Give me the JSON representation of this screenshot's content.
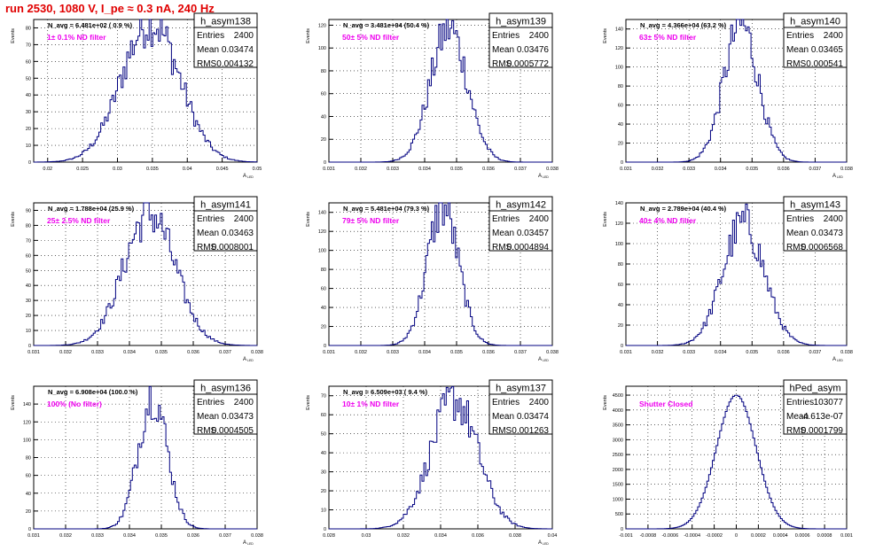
{
  "page_title": "run 2530,  1080 V, I_pe ≈ 0.3 nA, 240 Hz",
  "colors": {
    "histogram": "#000080",
    "annotation": "#ee00ee",
    "title": "#e00000",
    "grid": "#000000"
  },
  "chart_data": [
    {
      "type": "histogram",
      "name": "h_asym138",
      "navg": "N_avg = 6.481e+02 ( 0.9 %)",
      "annotation": "1± 0.1% ND filter",
      "stats": {
        "entries_label": "Entries",
        "entries": "2400",
        "mean_label": "Mean",
        "mean": "0.03474",
        "rms_label": "RMS",
        "rms": "0.004132"
      },
      "ylabel": "Events",
      "xlabel": "A",
      "xlim": [
        0.018,
        0.05
      ],
      "ylim": [
        0,
        85
      ],
      "xticks": [
        0.02,
        0.025,
        0.03,
        0.035,
        0.04,
        0.045,
        0.05
      ],
      "xticklabels": [
        "0.02",
        "0.025",
        "0.03",
        "0.035",
        "0.04",
        "0.045",
        "0.05"
      ],
      "yticks": [
        0,
        10,
        20,
        30,
        40,
        50,
        60,
        70,
        80
      ],
      "mean": 0.03474,
      "rms": 0.004132,
      "peak": 84
    },
    {
      "type": "histogram",
      "name": "h_asym139",
      "navg": "N_avg = 3.481e+04 (50.4 %)",
      "annotation": "50± 5% ND filter",
      "stats": {
        "entries_label": "Entries",
        "entries": "2400",
        "mean_label": "Mean",
        "mean": "0.03476",
        "rms_label": "RMS",
        "rms": "0.0005772"
      },
      "ylabel": "Events",
      "xlabel": "A",
      "xlim": [
        0.031,
        0.038
      ],
      "ylim": [
        0,
        125
      ],
      "xticks": [
        0.031,
        0.032,
        0.033,
        0.034,
        0.035,
        0.036,
        0.037,
        0.038
      ],
      "xticklabels": [
        "0.031",
        "0.032",
        "0.033",
        "0.034",
        "0.035",
        "0.036",
        "0.037",
        "0.038"
      ],
      "yticks": [
        0,
        20,
        40,
        60,
        80,
        100,
        120
      ],
      "mean": 0.03476,
      "rms": 0.0005772,
      "peak": 117
    },
    {
      "type": "histogram",
      "name": "h_asym140",
      "navg": "N_avg = 4.366e+04 (63.2 %)",
      "annotation": "63± 5% ND filter",
      "stats": {
        "entries_label": "Entries",
        "entries": "2400",
        "mean_label": "Mean",
        "mean": "0.03465",
        "rms_label": "RMS",
        "rms": "0.000541"
      },
      "ylabel": "Events",
      "xlabel": "A",
      "xlim": [
        0.031,
        0.038
      ],
      "ylim": [
        0,
        150
      ],
      "xticks": [
        0.031,
        0.032,
        0.033,
        0.034,
        0.035,
        0.036,
        0.037,
        0.038
      ],
      "xticklabels": [
        "0.031",
        "0.032",
        "0.033",
        "0.034",
        "0.035",
        "0.036",
        "0.037",
        "0.038"
      ],
      "yticks": [
        0,
        20,
        40,
        60,
        80,
        100,
        120,
        140
      ],
      "mean": 0.03465,
      "rms": 0.000541,
      "peak": 145
    },
    {
      "type": "histogram",
      "name": "h_asym141",
      "navg": "N_avg = 1.788e+04 (25.9 %)",
      "annotation": "25± 2.5% ND filter",
      "stats": {
        "entries_label": "Entries",
        "entries": "2400",
        "mean_label": "Mean",
        "mean": "0.03463",
        "rms_label": "RMS",
        "rms": "0.0008001"
      },
      "ylabel": "Events",
      "xlabel": "A",
      "xlim": [
        0.031,
        0.038
      ],
      "ylim": [
        0,
        95
      ],
      "xticks": [
        0.031,
        0.032,
        0.033,
        0.034,
        0.035,
        0.036,
        0.037,
        0.038
      ],
      "xticklabels": [
        "0.031",
        "0.032",
        "0.033",
        "0.034",
        "0.035",
        "0.036",
        "0.037",
        "0.038"
      ],
      "yticks": [
        0,
        10,
        20,
        30,
        40,
        50,
        60,
        70,
        80,
        90
      ],
      "mean": 0.03463,
      "rms": 0.0008001,
      "peak": 88
    },
    {
      "type": "histogram",
      "name": "h_asym142",
      "navg": "N_avg = 5.481e+04 (79.3 %)",
      "annotation": "79± 5% ND filter",
      "stats": {
        "entries_label": "Entries",
        "entries": "2400",
        "mean_label": "Mean",
        "mean": "0.03457",
        "rms_label": "RMS",
        "rms": "0.0004894"
      },
      "ylabel": "Events",
      "xlabel": "A",
      "xlim": [
        0.031,
        0.038
      ],
      "ylim": [
        0,
        150
      ],
      "xticks": [
        0.031,
        0.032,
        0.033,
        0.034,
        0.035,
        0.036,
        0.037,
        0.038
      ],
      "xticklabels": [
        "0.031",
        "0.032",
        "0.033",
        "0.034",
        "0.035",
        "0.036",
        "0.037",
        "0.038"
      ],
      "yticks": [
        0,
        20,
        40,
        60,
        80,
        100,
        120,
        140
      ],
      "mean": 0.03457,
      "rms": 0.0004894,
      "peak": 146
    },
    {
      "type": "histogram",
      "name": "h_asym143",
      "navg": "N_avg = 2.789e+04 (40.4 %)",
      "annotation": "40± 4% ND filter",
      "stats": {
        "entries_label": "Entries",
        "entries": "2400",
        "mean_label": "Mean",
        "mean": "0.03473",
        "rms_label": "RMS",
        "rms": "0.0006568"
      },
      "ylabel": "Events",
      "xlabel": "A",
      "xlim": [
        0.031,
        0.038
      ],
      "ylim": [
        0,
        140
      ],
      "xticks": [
        0.031,
        0.032,
        0.033,
        0.034,
        0.035,
        0.036,
        0.037,
        0.038
      ],
      "xticklabels": [
        "0.031",
        "0.032",
        "0.033",
        "0.034",
        "0.035",
        "0.036",
        "0.037",
        "0.038"
      ],
      "yticks": [
        0,
        20,
        40,
        60,
        80,
        100,
        120,
        140
      ],
      "mean": 0.03473,
      "rms": 0.0006568,
      "peak": 120
    },
    {
      "type": "histogram",
      "name": "h_asym136",
      "navg": "N_avg = 6.908e+04 (100.0 %)",
      "annotation": "100% (No filter)",
      "stats": {
        "entries_label": "Entries",
        "entries": "2400",
        "mean_label": "Mean",
        "mean": "0.03473",
        "rms_label": "RMS",
        "rms": "0.0004505"
      },
      "ylabel": "Events",
      "xlabel": "A",
      "xlim": [
        0.031,
        0.038
      ],
      "ylim": [
        0,
        160
      ],
      "xticks": [
        0.031,
        0.032,
        0.033,
        0.034,
        0.035,
        0.036,
        0.037,
        0.038
      ],
      "xticklabels": [
        "0.031",
        "0.032",
        "0.033",
        "0.034",
        "0.035",
        "0.036",
        "0.037",
        "0.038"
      ],
      "yticks": [
        0,
        20,
        40,
        60,
        80,
        100,
        120,
        140
      ],
      "mean": 0.03473,
      "rms": 0.0004505,
      "peak": 150
    },
    {
      "type": "histogram",
      "name": "h_asym137",
      "navg": "N_avg = 6.509e+03 ( 9.4 %)",
      "annotation": "10± 1% ND filter",
      "stats": {
        "entries_label": "Entries",
        "entries": "2400",
        "mean_label": "Mean",
        "mean": "0.03474",
        "rms_label": "RMS",
        "rms": "0.001263"
      },
      "ylabel": "Events",
      "xlabel": "A",
      "xlim": [
        0.028,
        0.04
      ],
      "ylim": [
        0,
        75
      ],
      "xticks": [
        0.028,
        0.03,
        0.032,
        0.034,
        0.036,
        0.038,
        0.04
      ],
      "xticklabels": [
        "0.028",
        "0.03",
        "0.032",
        "0.034",
        "0.036",
        "0.038",
        "0.04"
      ],
      "yticks": [
        0,
        10,
        20,
        30,
        40,
        50,
        60,
        70
      ],
      "mean": 0.03474,
      "rms": 0.001263,
      "peak": 68
    },
    {
      "type": "histogram",
      "name": "hPed_asym",
      "navg": "",
      "annotation": "Shutter Closed",
      "stats": {
        "entries_label": "Entries",
        "entries": "103077",
        "mean_label": "Mean",
        "mean": "-4.613e-07",
        "rms_label": "RMS",
        "rms": "0.0001799"
      },
      "ylabel": "Events",
      "xlabel": "",
      "xlim": [
        -0.001,
        0.001
      ],
      "ylim": [
        0,
        4800
      ],
      "xticks": [
        -0.001,
        -0.0008,
        -0.0006,
        -0.0004,
        -0.0002,
        0,
        0.0002,
        0.0004,
        0.0006,
        0.0008,
        0.001
      ],
      "xticklabels": [
        "-0.001",
        "-0.0008",
        "-0.0006",
        "-0.0004",
        "-0.0002",
        "0",
        "0.0002",
        "0.0004",
        "0.0006",
        "0.0008",
        "0.001"
      ],
      "yticks": [
        0,
        500,
        1000,
        1500,
        2000,
        2500,
        3000,
        3500,
        4000,
        4500
      ],
      "mean": 0,
      "rms": 0.0001799,
      "peak": 4500
    }
  ]
}
